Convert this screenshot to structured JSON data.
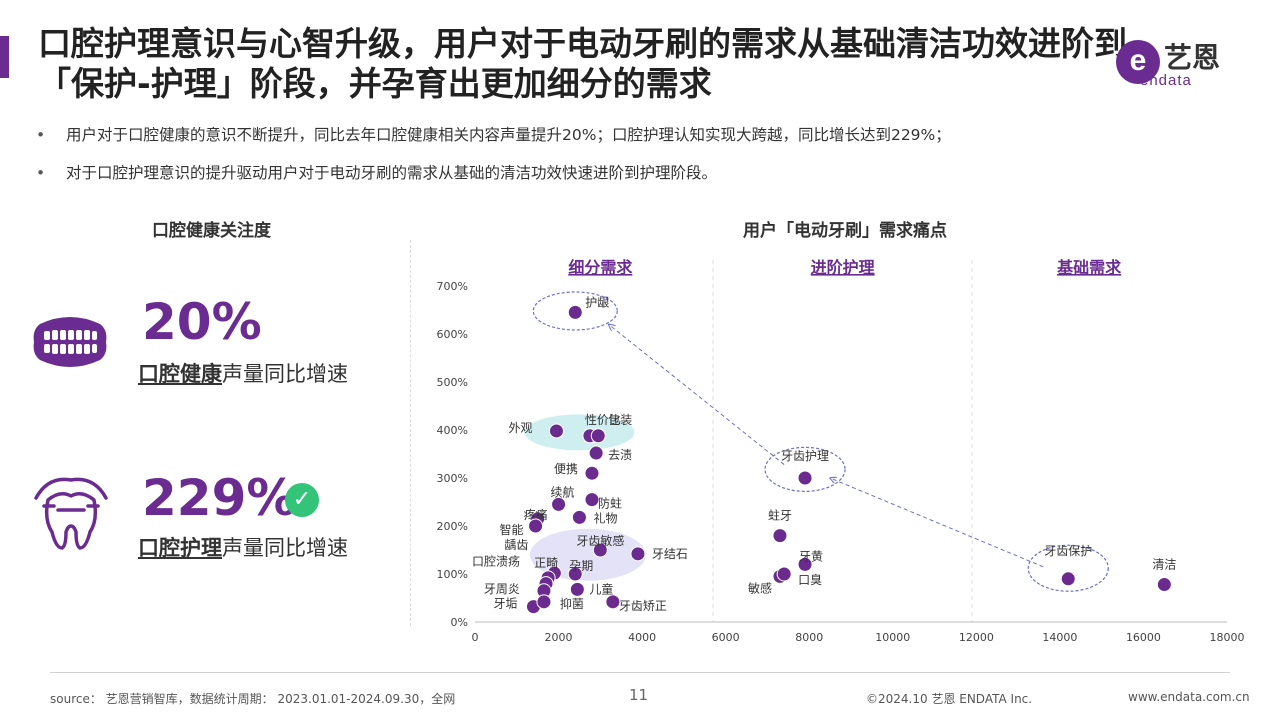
{
  "title": "口腔护理意识与心智升级，用户对于电动牙刷的需求从基础清洁功效进阶到「保护-护理」阶段，并孕育出更加细分的需求",
  "logo": {
    "mark": "e",
    "cn": "艺恩",
    "en": "endata"
  },
  "bullets": [
    "用户对于口腔健康的意识不断提升，同比去年口腔健康相关内容声量提升20%；口腔护理认知实现大跨越，同比增长达到229%；",
    "对于口腔护理意识的提升驱动用户对于电动牙刷的需求从基础的清洁功效快速进阶到护理阶段。"
  ],
  "left_panel": {
    "heading": "口腔健康关注度",
    "stats": [
      {
        "value": "20%",
        "label_em": "口腔健康",
        "label_rest": "声量同比增速",
        "icon": "teeth-icon"
      },
      {
        "value": "229%",
        "label_em": "口腔护理",
        "label_rest": "声量同比增速",
        "icon": "tooth-care-icon",
        "badge": "✓"
      }
    ]
  },
  "chart_data": {
    "type": "scatter",
    "title": "用户「电动牙刷」需求痛点",
    "xlim": [
      0,
      18000
    ],
    "ylim": [
      0,
      700
    ],
    "x_ticks": [
      "0",
      "2000",
      "4000",
      "6000",
      "8000",
      "10000",
      "12000",
      "14000",
      "16000",
      "18000"
    ],
    "y_ticks": [
      "0%",
      "100%",
      "200%",
      "300%",
      "400%",
      "500%",
      "600%",
      "700%"
    ],
    "sections": [
      {
        "label": "细分需求"
      },
      {
        "label": "进阶护理"
      },
      {
        "label": "基础需求"
      }
    ],
    "points": [
      {
        "label": "护龈",
        "x": 2400,
        "y": 645
      },
      {
        "label": "外观",
        "x": 1950,
        "y": 398
      },
      {
        "label": "性价比",
        "x": 2750,
        "y": 388
      },
      {
        "label": "包装",
        "x": 2950,
        "y": 388
      },
      {
        "label": "去渍",
        "x": 2900,
        "y": 352
      },
      {
        "label": "便携",
        "x": 2800,
        "y": 310
      },
      {
        "label": "续航",
        "x": 2000,
        "y": 245
      },
      {
        "label": "防蛀",
        "x": 2800,
        "y": 255
      },
      {
        "label": "疼痛",
        "x": 1500,
        "y": 215
      },
      {
        "label": "礼物",
        "x": 2500,
        "y": 218
      },
      {
        "label": "智能",
        "x": 1450,
        "y": 200
      },
      {
        "label": "牙齿敏感",
        "x": 3000,
        "y": 150
      },
      {
        "label": "牙结石",
        "x": 3900,
        "y": 142
      },
      {
        "label": "龋齿",
        "x": 1900,
        "y": 102
      },
      {
        "label": "正畸",
        "x": 1750,
        "y": 92
      },
      {
        "label": "口腔溃疡",
        "x": 1700,
        "y": 80
      },
      {
        "label": "孕期",
        "x": 2400,
        "y": 100
      },
      {
        "label": "牙周炎",
        "x": 1650,
        "y": 65
      },
      {
        "label": "儿童",
        "x": 2450,
        "y": 68
      },
      {
        "label": "牙垢",
        "x": 1400,
        "y": 32
      },
      {
        "label": "抑菌",
        "x": 1650,
        "y": 42
      },
      {
        "label": "牙齿矫正",
        "x": 3300,
        "y": 42
      },
      {
        "label": "牙齿护理",
        "x": 7900,
        "y": 300
      },
      {
        "label": "蛀牙",
        "x": 7300,
        "y": 180
      },
      {
        "label": "牙黄",
        "x": 7900,
        "y": 120
      },
      {
        "label": "敏感",
        "x": 7300,
        "y": 95
      },
      {
        "label": "口臭",
        "x": 7400,
        "y": 100
      },
      {
        "label": "牙齿保护",
        "x": 14200,
        "y": 90
      },
      {
        "label": "清洁",
        "x": 16500,
        "y": 78
      }
    ],
    "highlight_color": "#6b2c91",
    "point_color": "#6a2a8e",
    "ellipse_color": "#6b6fd1",
    "cluster_color_teal": "#cfeef0",
    "cluster_color_lavender": "#e3e2f7"
  },
  "footer": {
    "source": "source： 艺恩营销智库，数据统计周期： 2023.01.01-2024.09.30，全网",
    "page": "11",
    "copyright": "©2024.10  艺恩 ENDATA Inc.",
    "website": "www.endata.com.cn"
  }
}
